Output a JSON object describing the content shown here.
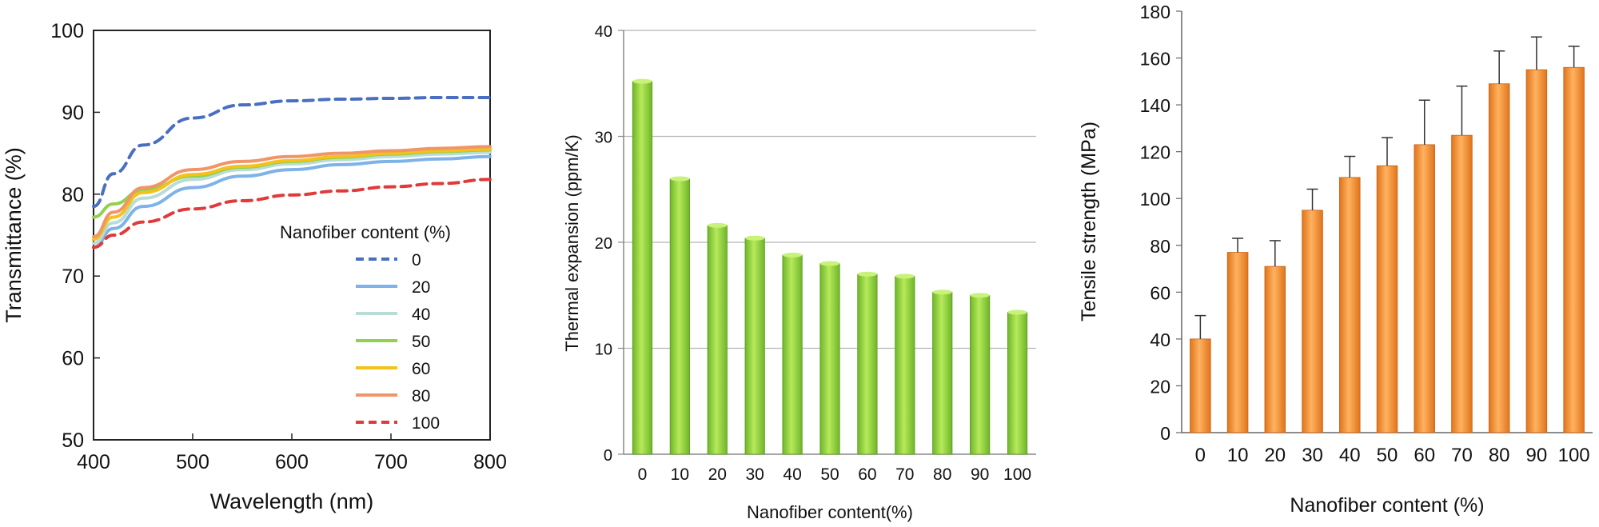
{
  "chart_data": [
    {
      "type": "line",
      "xlabel": "Wavelength (nm)",
      "ylabel": "Transmittance (%)",
      "xlim": [
        400,
        800
      ],
      "ylim": [
        50,
        100
      ],
      "xticks": [
        "400",
        "500",
        "600",
        "700",
        "800"
      ],
      "yticks": [
        "50",
        "60",
        "70",
        "80",
        "90",
        "100"
      ],
      "x": [
        400,
        420,
        450,
        500,
        550,
        600,
        650,
        700,
        750,
        800
      ],
      "legend_title": "Nanofiber content (%)",
      "legend_position": "lower-right",
      "grid": false,
      "series": [
        {
          "name": "0",
          "color": "#4a6fc1",
          "dash": "dashed",
          "values": [
            78.5,
            82.5,
            86.0,
            89.3,
            90.9,
            91.4,
            91.6,
            91.7,
            91.8,
            91.8
          ]
        },
        {
          "name": "20",
          "color": "#7fb3e8",
          "dash": "solid",
          "values": [
            73.5,
            75.8,
            78.5,
            80.8,
            82.2,
            83.0,
            83.6,
            84.0,
            84.3,
            84.6
          ]
        },
        {
          "name": "40",
          "color": "#b8dcd6",
          "dash": "solid",
          "values": [
            74.0,
            76.5,
            79.5,
            81.8,
            83.0,
            83.7,
            84.2,
            84.6,
            84.9,
            85.1
          ]
        },
        {
          "name": "50",
          "color": "#92d050",
          "dash": "solid",
          "values": [
            77.2,
            78.8,
            80.5,
            82.2,
            83.3,
            84.0,
            84.5,
            84.9,
            85.2,
            85.4
          ]
        },
        {
          "name": "60",
          "color": "#f4c21a",
          "dash": "solid",
          "values": [
            74.5,
            77.2,
            80.2,
            82.4,
            83.4,
            84.1,
            84.6,
            85.0,
            85.3,
            85.5
          ]
        },
        {
          "name": "80",
          "color": "#f0956a",
          "dash": "solid",
          "values": [
            74.8,
            77.8,
            80.8,
            83.0,
            84.0,
            84.6,
            85.0,
            85.3,
            85.6,
            85.8
          ]
        },
        {
          "name": "100",
          "color": "#e03a3a",
          "dash": "dashed",
          "values": [
            73.5,
            75.0,
            76.6,
            78.2,
            79.2,
            79.9,
            80.4,
            80.9,
            81.3,
            81.8
          ]
        }
      ]
    },
    {
      "type": "bar",
      "xlabel": "Nanofiber content(%)",
      "ylabel": "Thermal expansion (ppm/K)",
      "ylim": [
        0,
        40
      ],
      "yticks": [
        "0",
        "10",
        "20",
        "30",
        "40"
      ],
      "grid": true,
      "color": "#8fd13a",
      "categories": [
        "0",
        "10",
        "20",
        "30",
        "40",
        "50",
        "60",
        "70",
        "80",
        "90",
        "100"
      ],
      "values": [
        35.2,
        26.0,
        21.6,
        20.4,
        18.8,
        18.0,
        17.0,
        16.8,
        15.3,
        15.0,
        13.4
      ]
    },
    {
      "type": "bar",
      "xlabel": "Nanofiber content (%)",
      "ylabel": "Tensile strength (MPa)",
      "ylim": [
        0,
        180
      ],
      "yticks": [
        "0",
        "20",
        "40",
        "60",
        "80",
        "100",
        "120",
        "140",
        "160",
        "180"
      ],
      "grid": false,
      "error_bars": true,
      "color": "#f0903a",
      "categories": [
        "0",
        "10",
        "20",
        "30",
        "40",
        "50",
        "60",
        "70",
        "80",
        "90",
        "100"
      ],
      "values": [
        40,
        77,
        71,
        95,
        109,
        114,
        123,
        127,
        149,
        155,
        156
      ],
      "errors": [
        10,
        6,
        11,
        9,
        9,
        12,
        19,
        21,
        14,
        14,
        9
      ]
    }
  ]
}
